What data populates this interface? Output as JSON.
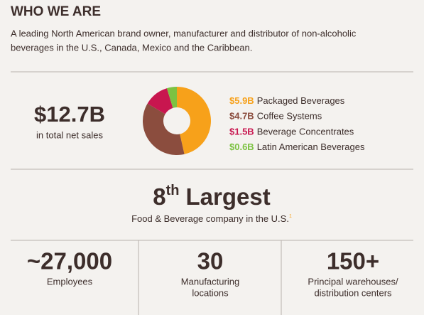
{
  "header": {
    "title": "WHO WE ARE",
    "description": [
      "A leading North American brand owner, manufacturer and distributor of non-alcoholic",
      "beverages in the U.S., Canada, Mexico and the Caribbean."
    ]
  },
  "sales": {
    "value": "$12.7B",
    "label": "in total net sales"
  },
  "chart_data": {
    "type": "pie",
    "donut": true,
    "categories": [
      "Packaged Beverages",
      "Coffee Systems",
      "Beverage Concentrates",
      "Latin American Beverages"
    ],
    "values": [
      5.9,
      4.7,
      1.5,
      0.6
    ],
    "value_labels": [
      "$5.9B",
      "$4.7B",
      "$1.5B",
      "$0.6B"
    ],
    "colors": [
      "#f7a11a",
      "#8b4d3e",
      "#c8164f",
      "#7cc242"
    ]
  },
  "rank": {
    "number": "8",
    "suffix": "th",
    "text": "Largest",
    "subtitle": "Food & Beverage company in the U.S.",
    "footnote": "1"
  },
  "stats": [
    {
      "value": "~27,000",
      "label": [
        "Employees"
      ]
    },
    {
      "value": "30",
      "label": [
        "Manufacturing",
        "locations"
      ]
    },
    {
      "value": "150+",
      "label": [
        "Principal warehouses/",
        "distribution centers"
      ]
    }
  ]
}
